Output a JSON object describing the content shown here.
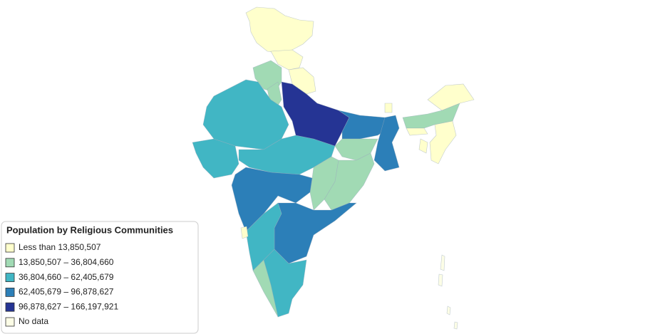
{
  "legend": {
    "title": "Population by Religious Communities",
    "items": [
      {
        "label": "Less than 13,850,507",
        "color": "#ffffcc"
      },
      {
        "label": "13,850,507 – 36,804,660",
        "color": "#a1dab4"
      },
      {
        "label": "36,804,660 – 62,405,679",
        "color": "#41b6c4"
      },
      {
        "label": "62,405,679 – 96,878,627",
        "color": "#2c7fb8"
      },
      {
        "label": "96,878,627 – 166,197,921",
        "color": "#253494"
      },
      {
        "label": "No data",
        "color": "#fcfde6"
      }
    ]
  }
}
